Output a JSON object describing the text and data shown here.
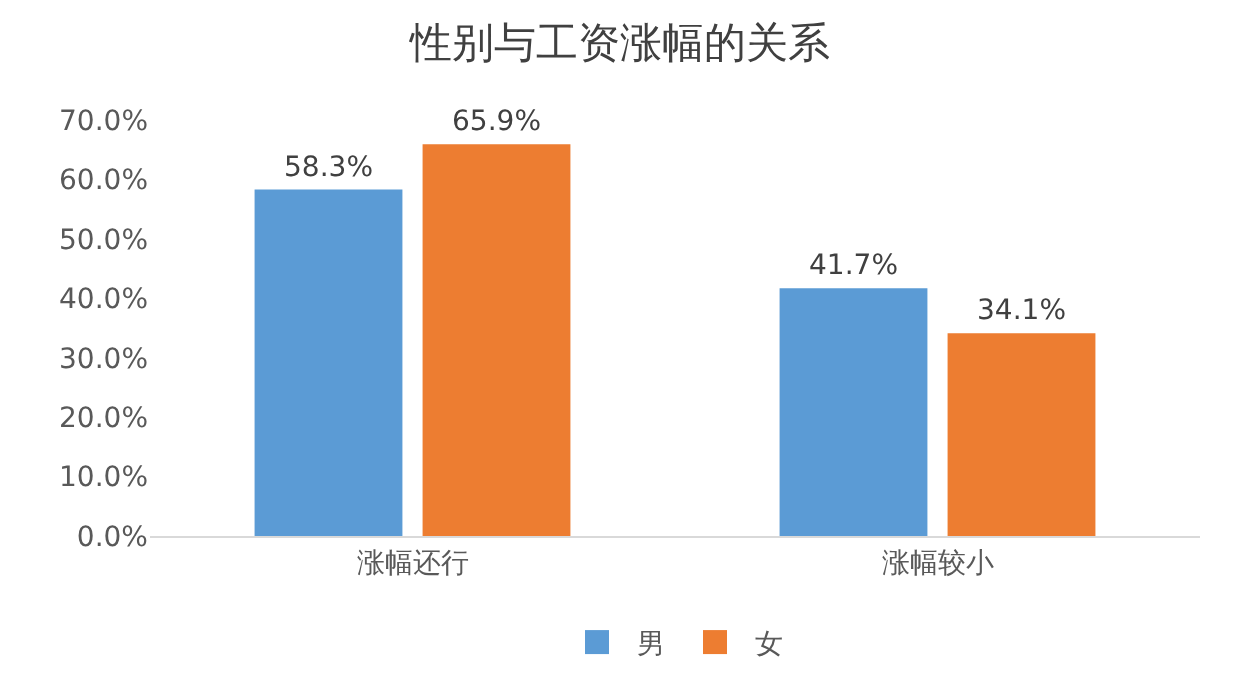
{
  "chart_data": {
    "type": "bar",
    "title": "性别与工资涨幅的关系",
    "categories": [
      "涨幅还行",
      "涨幅较小"
    ],
    "series": [
      {
        "name": "男",
        "color": "#5b9bd5",
        "values": [
          58.3,
          41.7
        ],
        "value_labels": [
          "58.3%",
          "41.7%"
        ]
      },
      {
        "name": "女",
        "color": "#ed7d31",
        "values": [
          65.9,
          34.1
        ],
        "value_labels": [
          "65.9%",
          "34.1%"
        ]
      }
    ],
    "ylim": [
      0,
      70
    ],
    "yticks": [
      {
        "value": 0,
        "label": "0.0%"
      },
      {
        "value": 10,
        "label": "10.0%"
      },
      {
        "value": 20,
        "label": "20.0%"
      },
      {
        "value": 30,
        "label": "30.0%"
      },
      {
        "value": 40,
        "label": "40.0%"
      },
      {
        "value": 50,
        "label": "50.0%"
      },
      {
        "value": 60,
        "label": "60.0%"
      },
      {
        "value": 70,
        "label": "70.0%"
      }
    ],
    "grid": false,
    "legend": "bottom"
  }
}
